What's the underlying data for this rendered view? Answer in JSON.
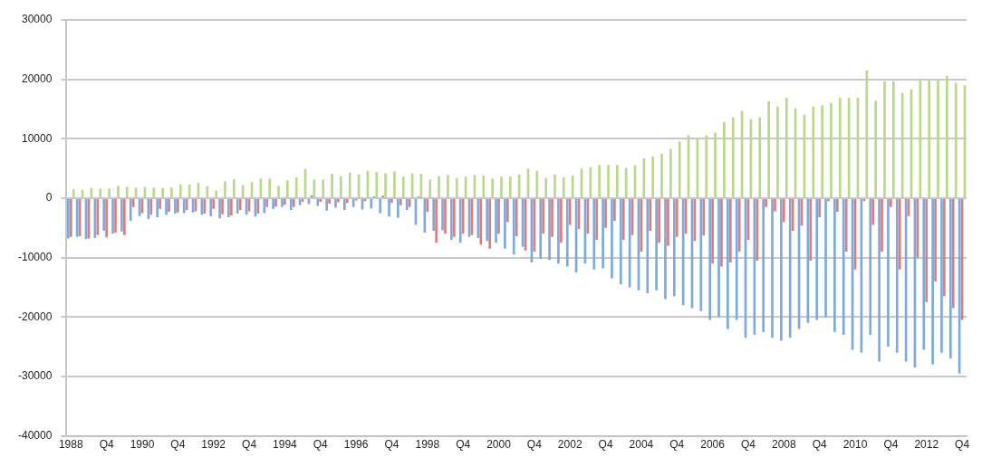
{
  "chart_data": {
    "type": "bar",
    "categories": [
      "1988",
      null,
      null,
      null,
      "Q4",
      null,
      null,
      null,
      "1990",
      null,
      null,
      null,
      "Q4",
      null,
      null,
      null,
      "1992",
      null,
      null,
      null,
      "Q4",
      null,
      null,
      null,
      "1994",
      null,
      null,
      null,
      "Q4",
      null,
      null,
      null,
      "1996",
      null,
      null,
      null,
      "Q4",
      null,
      null,
      null,
      "1998",
      null,
      null,
      null,
      "Q4",
      null,
      null,
      null,
      "2000",
      null,
      null,
      null,
      "Q4",
      null,
      null,
      null,
      "2002",
      null,
      null,
      null,
      "Q4",
      null,
      null,
      null,
      "2004",
      null,
      null,
      null,
      "Q4",
      null,
      null,
      null,
      "2006",
      null,
      null,
      null,
      "Q4",
      null,
      null,
      null,
      "2008",
      null,
      null,
      null,
      "Q4",
      null,
      null,
      null,
      "2010",
      null,
      null,
      null,
      "Q4",
      null,
      null,
      null,
      "2012",
      null,
      null,
      null,
      "Q4"
    ],
    "series": [
      {
        "color": "#7aaae0",
        "values": [
          -6800,
          -6500,
          -6900,
          -6700,
          -5500,
          -6000,
          -5600,
          -3800,
          -3000,
          -3500,
          -3200,
          -2800,
          -2600,
          -2500,
          -2400,
          -2800,
          -3000,
          -3400,
          -3200,
          -2600,
          -2800,
          -3100,
          -2500,
          -1800,
          -1500,
          -2000,
          -1200,
          -1000,
          -1300,
          -2100,
          -1600,
          -2000,
          -1500,
          -1900,
          -1700,
          -2500,
          -3100,
          -3300,
          -2000,
          -4500,
          -5800,
          -5500,
          -5400,
          -7000,
          -7500,
          -6500,
          -6700,
          -7200,
          -7500,
          -8500,
          -9500,
          -8200,
          -10800,
          -10200,
          -10400,
          -11000,
          -11500,
          -12500,
          -11000,
          -12000,
          -11800,
          -13500,
          -14500,
          -15000,
          -15500,
          -16000,
          -15500,
          -17000,
          -16500,
          -18000,
          -18500,
          -19000,
          -20500,
          -20000,
          -22000,
          -20500,
          -23500,
          -23000,
          -22500,
          -23500,
          -24000,
          -23500,
          -22000,
          -21000,
          -20500,
          -20000,
          -22500,
          -23000,
          -25500,
          -26000,
          -23000,
          -27500,
          -25000,
          -26000,
          -27500,
          -28500,
          -25500,
          -28000,
          -26000,
          -27000,
          -29500
        ]
      },
      {
        "color": "#e07b78",
        "values": [
          -6500,
          -6400,
          -6800,
          -6200,
          -6600,
          -5800,
          -6200,
          -1500,
          -2500,
          -2800,
          -1800,
          -2300,
          -2400,
          -2000,
          -2200,
          -2600,
          -1800,
          -2700,
          -2900,
          -2000,
          -2200,
          -2600,
          -1500,
          -1400,
          -1100,
          -1500,
          -600,
          500,
          -600,
          -900,
          -700,
          -800,
          -400,
          -500,
          300,
          400,
          -800,
          -1200,
          -1500,
          300,
          -2300,
          -7500,
          -6000,
          -6500,
          -6000,
          -6200,
          -7800,
          -8500,
          -6000,
          -4000,
          -6400,
          -8800,
          -9000,
          -6000,
          -6500,
          -7500,
          -4500,
          -5200,
          -6000,
          -7000,
          -5000,
          -3800,
          -7000,
          -6200,
          -9000,
          -5500,
          -7500,
          -8000,
          -6500,
          -6000,
          -7200,
          -6300,
          -11000,
          -11500,
          -10800,
          -9000,
          -7000,
          -10500,
          -1500,
          -2200,
          -4000,
          -5500,
          -4600,
          -10500,
          -3200,
          -500,
          -2300,
          -9000,
          -12000,
          -500,
          -4500,
          -9000,
          -1500,
          -12000,
          -3000,
          -10000,
          -17500,
          -14000,
          -16500,
          -18500,
          -20500
        ]
      },
      {
        "color": "#b9d88a",
        "values": [
          1500,
          1400,
          1700,
          1600,
          1600,
          2100,
          1900,
          1800,
          1900,
          1800,
          1700,
          1800,
          2300,
          2300,
          2600,
          2000,
          1300,
          2800,
          3200,
          2200,
          2700,
          3300,
          3300,
          2100,
          3000,
          3500,
          4900,
          3100,
          3100,
          4100,
          3700,
          4300,
          4000,
          4600,
          4400,
          4200,
          4500,
          3600,
          4200,
          4100,
          3100,
          3700,
          3900,
          3400,
          3600,
          3900,
          3800,
          3300,
          3600,
          3600,
          4000,
          5000,
          4600,
          3400,
          4000,
          3500,
          3800,
          5000,
          5200,
          5600,
          5600,
          5600,
          5100,
          5500,
          6700,
          7000,
          7500,
          8300,
          9500,
          10600,
          10100,
          10600,
          11000,
          12800,
          13600,
          14700,
          13300,
          13600,
          16300,
          15400,
          16900,
          15100,
          14100,
          15400,
          15600,
          16000,
          16900,
          16900,
          16900,
          21500,
          16400,
          19700,
          19700,
          17700,
          18300,
          20000,
          19800,
          19800,
          20600,
          19400,
          19000
        ]
      }
    ],
    "ylim": [
      -40000,
      30000
    ],
    "yticks": [
      -40000,
      -30000,
      -20000,
      -10000,
      0,
      10000,
      20000,
      30000
    ],
    "grid": "y",
    "legend": false
  }
}
